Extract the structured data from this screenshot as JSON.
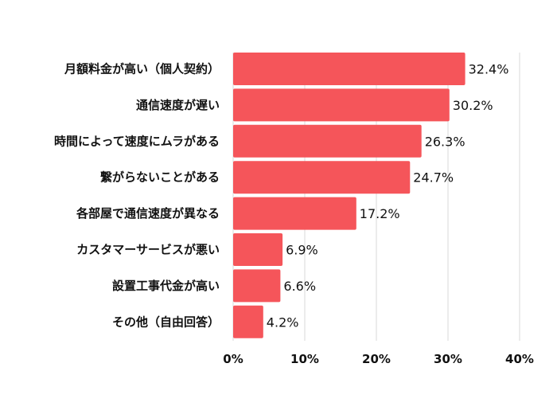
{
  "chart_data": {
    "type": "bar",
    "orientation": "horizontal",
    "categories": [
      "月額料金が高い（個人契約）",
      "通信速度が遅い",
      "時間によって速度にムラがある",
      "繋がらないことがある",
      "各部屋で通信速度が異なる",
      "カスタマーサービスが悪い",
      "設置工事代金が高い",
      "その他（自由回答）"
    ],
    "values": [
      32.4,
      30.2,
      26.3,
      24.7,
      17.2,
      6.9,
      6.6,
      4.2
    ],
    "value_labels": [
      "32.4%",
      "30.2%",
      "26.3%",
      "24.7%",
      "17.2%",
      "6.9%",
      "6.6%",
      "4.2%"
    ],
    "xlim": [
      0,
      40
    ],
    "xticks": [
      0,
      10,
      20,
      30,
      40
    ],
    "xtick_labels": [
      "0%",
      "10%",
      "20%",
      "30%",
      "40%"
    ],
    "grid": true,
    "bar_color": "#f5555a",
    "grid_color": "#d9d9d9"
  }
}
